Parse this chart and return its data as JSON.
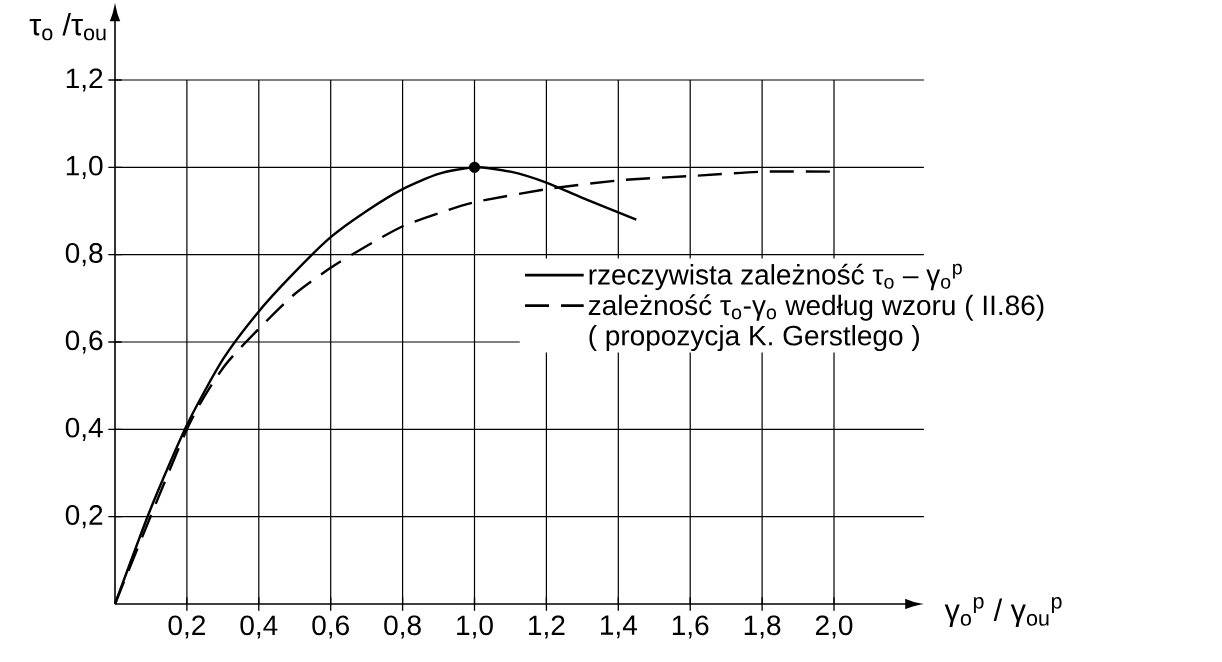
{
  "chart_data": {
    "type": "line",
    "xlabel": "γ$_{o}$$^{p}$ / γ$_{ou}$$^{p}$",
    "ylabel": "τ$_{o}$ /τ$_{ou}$",
    "xlim": [
      0,
      2.25
    ],
    "ylim": [
      0,
      1.2
    ],
    "xticks": [
      {
        "value": 0.2,
        "label": "0,2"
      },
      {
        "value": 0.4,
        "label": "0,4"
      },
      {
        "value": 0.6,
        "label": "0,6"
      },
      {
        "value": 0.8,
        "label": "0,8"
      },
      {
        "value": 1.0,
        "label": "1,0"
      },
      {
        "value": 1.2,
        "label": "1,2"
      },
      {
        "value": 1.4,
        "label": "1,4"
      },
      {
        "value": 1.6,
        "label": "1,6"
      },
      {
        "value": 1.8,
        "label": "1,8"
      },
      {
        "value": 2.0,
        "label": "2,0"
      }
    ],
    "yticks": [
      {
        "value": 0.2,
        "label": "0,2"
      },
      {
        "value": 0.4,
        "label": "0,4"
      },
      {
        "value": 0.6,
        "label": "0,6"
      },
      {
        "value": 0.8,
        "label": "0,8"
      },
      {
        "value": 1.0,
        "label": "1,0"
      },
      {
        "value": 1.2,
        "label": "1,2"
      }
    ],
    "grid": true,
    "legend": "right",
    "series": [
      {
        "name": "rzeczywista zależność τ$_{o}$ – γ$_{o}$$^{p}$",
        "color": "#000000",
        "line_style": "solid",
        "x": [
          0,
          0.1,
          0.2,
          0.3,
          0.4,
          0.5,
          0.6,
          0.7,
          0.8,
          0.9,
          1.0,
          1.1,
          1.2,
          1.3,
          1.45
        ],
        "values": [
          0,
          0.22,
          0.41,
          0.56,
          0.67,
          0.76,
          0.84,
          0.9,
          0.95,
          0.985,
          1.0,
          0.99,
          0.965,
          0.93,
          0.88
        ]
      },
      {
        "name": "zależność τ$_{o}$-γ$_{o}$ według wzoru ( II.86)",
        "color": "#000000",
        "line_style": "dashed",
        "x": [
          0,
          0.2,
          0.3,
          0.4,
          0.5,
          0.6,
          0.7,
          0.8,
          0.9,
          1.0,
          1.2,
          1.4,
          1.6,
          1.8,
          2.0
        ],
        "values": [
          0,
          0.4,
          0.54,
          0.63,
          0.71,
          0.77,
          0.82,
          0.865,
          0.895,
          0.92,
          0.95,
          0.97,
          0.98,
          0.99,
          0.99
        ]
      },
      {
        "type": "scatter",
        "color": "#000000",
        "x": [
          1.0
        ],
        "values": [
          1.0
        ]
      }
    ],
    "annotations": [
      "( propozycja K. Gerstlego )"
    ]
  }
}
